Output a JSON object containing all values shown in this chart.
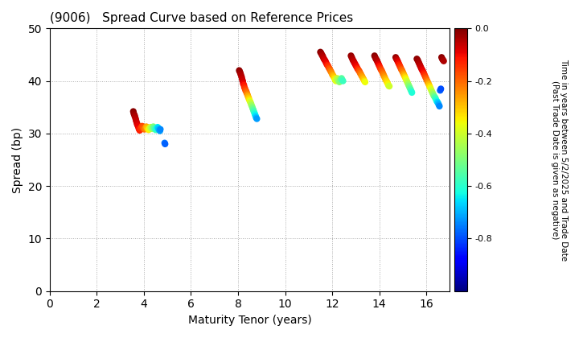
{
  "title": "(9006)   Spread Curve based on Reference Prices",
  "xlabel": "Maturity Tenor (years)",
  "ylabel": "Spread (bp)",
  "colorbar_label_line1": "Time in years between 5/2/2025 and Trade Date",
  "colorbar_label_line2": "(Past Trade Date is given as negative)",
  "xlim": [
    0,
    17
  ],
  "ylim": [
    0,
    50
  ],
  "xticks": [
    0,
    2,
    4,
    6,
    8,
    10,
    12,
    14,
    16
  ],
  "yticks": [
    0,
    10,
    20,
    30,
    40,
    50
  ],
  "cmap": "jet",
  "vmin": -1.0,
  "vmax": 0.0,
  "colorbar_ticks": [
    0.0,
    -0.2,
    -0.4,
    -0.6,
    -0.8
  ],
  "background_color": "#ffffff",
  "grid_color": "#aaaaaa",
  "points": [
    [
      3.55,
      34.2,
      -0.01
    ],
    [
      3.57,
      33.8,
      -0.02
    ],
    [
      3.6,
      33.5,
      -0.03
    ],
    [
      3.62,
      33.2,
      -0.04
    ],
    [
      3.65,
      32.8,
      -0.05
    ],
    [
      3.67,
      32.4,
      -0.06
    ],
    [
      3.7,
      32.0,
      -0.07
    ],
    [
      3.72,
      31.7,
      -0.08
    ],
    [
      3.75,
      31.4,
      -0.09
    ],
    [
      3.78,
      31.0,
      -0.1
    ],
    [
      3.8,
      30.8,
      -0.11
    ],
    [
      3.82,
      30.6,
      -0.12
    ],
    [
      3.85,
      30.8,
      -0.13
    ],
    [
      3.87,
      31.0,
      -0.14
    ],
    [
      3.9,
      31.2,
      -0.15
    ],
    [
      3.92,
      31.4,
      -0.16
    ],
    [
      3.95,
      31.3,
      -0.17
    ],
    [
      3.97,
      31.1,
      -0.18
    ],
    [
      4.0,
      31.0,
      -0.19
    ],
    [
      4.02,
      30.8,
      -0.2
    ],
    [
      4.05,
      30.9,
      -0.22
    ],
    [
      4.08,
      31.1,
      -0.24
    ],
    [
      4.1,
      31.3,
      -0.26
    ],
    [
      4.13,
      31.2,
      -0.28
    ],
    [
      4.15,
      31.0,
      -0.3
    ],
    [
      4.18,
      30.8,
      -0.32
    ],
    [
      4.2,
      30.7,
      -0.34
    ],
    [
      4.23,
      30.9,
      -0.36
    ],
    [
      4.25,
      31.0,
      -0.38
    ],
    [
      4.28,
      31.2,
      -0.4
    ],
    [
      4.3,
      31.1,
      -0.42
    ],
    [
      4.33,
      31.0,
      -0.44
    ],
    [
      4.35,
      30.9,
      -0.46
    ],
    [
      4.38,
      31.1,
      -0.48
    ],
    [
      4.4,
      31.3,
      -0.5
    ],
    [
      4.43,
      31.1,
      -0.52
    ],
    [
      4.45,
      31.0,
      -0.54
    ],
    [
      4.48,
      30.9,
      -0.56
    ],
    [
      4.5,
      30.7,
      -0.58
    ],
    [
      4.53,
      30.9,
      -0.6
    ],
    [
      4.55,
      31.0,
      -0.62
    ],
    [
      4.58,
      31.2,
      -0.64
    ],
    [
      4.6,
      31.1,
      -0.66
    ],
    [
      4.62,
      30.9,
      -0.68
    ],
    [
      4.65,
      30.7,
      -0.7
    ],
    [
      4.68,
      30.5,
      -0.72
    ],
    [
      4.7,
      30.8,
      -0.74
    ],
    [
      4.88,
      28.2,
      -0.76
    ],
    [
      4.9,
      28.0,
      -0.78
    ],
    [
      8.05,
      42.0,
      -0.01
    ],
    [
      8.07,
      41.8,
      -0.02
    ],
    [
      8.1,
      41.5,
      -0.03
    ],
    [
      8.12,
      41.2,
      -0.04
    ],
    [
      8.15,
      40.8,
      -0.05
    ],
    [
      8.17,
      40.4,
      -0.06
    ],
    [
      8.2,
      40.0,
      -0.07
    ],
    [
      8.22,
      39.5,
      -0.09
    ],
    [
      8.25,
      39.2,
      -0.11
    ],
    [
      8.27,
      38.8,
      -0.13
    ],
    [
      8.3,
      38.5,
      -0.15
    ],
    [
      8.32,
      38.2,
      -0.17
    ],
    [
      8.35,
      38.0,
      -0.19
    ],
    [
      8.37,
      37.7,
      -0.21
    ],
    [
      8.4,
      37.4,
      -0.24
    ],
    [
      8.42,
      37.1,
      -0.27
    ],
    [
      8.45,
      36.8,
      -0.3
    ],
    [
      8.47,
      36.5,
      -0.33
    ],
    [
      8.5,
      36.2,
      -0.36
    ],
    [
      8.52,
      36.0,
      -0.39
    ],
    [
      8.55,
      35.7,
      -0.42
    ],
    [
      8.57,
      35.4,
      -0.45
    ],
    [
      8.6,
      35.1,
      -0.48
    ],
    [
      8.62,
      34.8,
      -0.51
    ],
    [
      8.65,
      34.5,
      -0.54
    ],
    [
      8.67,
      34.2,
      -0.57
    ],
    [
      8.7,
      33.9,
      -0.6
    ],
    [
      8.72,
      33.6,
      -0.63
    ],
    [
      8.75,
      33.3,
      -0.66
    ],
    [
      8.77,
      33.0,
      -0.69
    ],
    [
      8.8,
      32.8,
      -0.72
    ],
    [
      11.5,
      45.5,
      -0.01
    ],
    [
      11.53,
      45.3,
      -0.02
    ],
    [
      11.56,
      45.0,
      -0.03
    ],
    [
      11.59,
      44.8,
      -0.04
    ],
    [
      11.62,
      44.5,
      -0.05
    ],
    [
      11.65,
      44.2,
      -0.06
    ],
    [
      11.68,
      44.0,
      -0.07
    ],
    [
      11.71,
      43.8,
      -0.08
    ],
    [
      11.74,
      43.5,
      -0.09
    ],
    [
      11.77,
      43.2,
      -0.1
    ],
    [
      11.8,
      43.0,
      -0.12
    ],
    [
      11.83,
      42.8,
      -0.14
    ],
    [
      11.86,
      42.5,
      -0.16
    ],
    [
      11.89,
      42.3,
      -0.18
    ],
    [
      11.92,
      42.0,
      -0.2
    ],
    [
      11.95,
      41.8,
      -0.22
    ],
    [
      11.98,
      41.5,
      -0.24
    ],
    [
      12.01,
      41.2,
      -0.26
    ],
    [
      12.04,
      41.0,
      -0.28
    ],
    [
      12.07,
      40.8,
      -0.3
    ],
    [
      12.1,
      40.5,
      -0.33
    ],
    [
      12.13,
      40.2,
      -0.36
    ],
    [
      12.16,
      40.0,
      -0.38
    ],
    [
      12.19,
      40.3,
      -0.4
    ],
    [
      12.22,
      40.5,
      -0.42
    ],
    [
      12.25,
      40.2,
      -0.44
    ],
    [
      12.28,
      40.0,
      -0.46
    ],
    [
      12.31,
      39.8,
      -0.48
    ],
    [
      12.34,
      40.0,
      -0.5
    ],
    [
      12.37,
      40.3,
      -0.52
    ],
    [
      12.4,
      40.5,
      -0.54
    ],
    [
      12.43,
      40.2,
      -0.56
    ],
    [
      12.46,
      40.0,
      -0.58
    ],
    [
      12.8,
      44.8,
      -0.02
    ],
    [
      12.83,
      44.5,
      -0.03
    ],
    [
      12.86,
      44.2,
      -0.04
    ],
    [
      12.89,
      43.9,
      -0.05
    ],
    [
      12.92,
      43.7,
      -0.06
    ],
    [
      12.95,
      43.4,
      -0.07
    ],
    [
      12.98,
      43.2,
      -0.08
    ],
    [
      13.01,
      42.9,
      -0.09
    ],
    [
      13.04,
      42.7,
      -0.1
    ],
    [
      13.07,
      42.4,
      -0.12
    ],
    [
      13.1,
      42.2,
      -0.14
    ],
    [
      13.13,
      42.0,
      -0.16
    ],
    [
      13.16,
      41.8,
      -0.18
    ],
    [
      13.19,
      41.5,
      -0.2
    ],
    [
      13.22,
      41.3,
      -0.22
    ],
    [
      13.25,
      41.0,
      -0.24
    ],
    [
      13.28,
      40.8,
      -0.26
    ],
    [
      13.31,
      40.5,
      -0.28
    ],
    [
      13.34,
      40.3,
      -0.3
    ],
    [
      13.37,
      40.0,
      -0.33
    ],
    [
      13.4,
      39.8,
      -0.36
    ],
    [
      13.8,
      44.8,
      -0.01
    ],
    [
      13.83,
      44.5,
      -0.02
    ],
    [
      13.86,
      44.2,
      -0.03
    ],
    [
      13.89,
      44.0,
      -0.04
    ],
    [
      13.92,
      43.7,
      -0.05
    ],
    [
      13.95,
      43.4,
      -0.07
    ],
    [
      13.98,
      43.1,
      -0.09
    ],
    [
      14.01,
      42.8,
      -0.11
    ],
    [
      14.04,
      42.5,
      -0.13
    ],
    [
      14.07,
      42.2,
      -0.15
    ],
    [
      14.1,
      42.0,
      -0.17
    ],
    [
      14.13,
      41.7,
      -0.19
    ],
    [
      14.16,
      41.4,
      -0.21
    ],
    [
      14.19,
      41.1,
      -0.23
    ],
    [
      14.22,
      40.8,
      -0.25
    ],
    [
      14.25,
      40.5,
      -0.27
    ],
    [
      14.28,
      40.2,
      -0.29
    ],
    [
      14.31,
      40.0,
      -0.31
    ],
    [
      14.34,
      39.7,
      -0.33
    ],
    [
      14.37,
      39.4,
      -0.35
    ],
    [
      14.4,
      39.1,
      -0.37
    ],
    [
      14.43,
      39.0,
      -0.4
    ],
    [
      14.7,
      44.5,
      -0.02
    ],
    [
      14.73,
      44.2,
      -0.04
    ],
    [
      14.76,
      44.0,
      -0.06
    ],
    [
      14.79,
      43.7,
      -0.08
    ],
    [
      14.82,
      43.4,
      -0.1
    ],
    [
      14.85,
      43.1,
      -0.12
    ],
    [
      14.88,
      42.8,
      -0.14
    ],
    [
      14.91,
      42.5,
      -0.16
    ],
    [
      14.94,
      42.2,
      -0.18
    ],
    [
      14.97,
      42.0,
      -0.2
    ],
    [
      15.0,
      41.7,
      -0.22
    ],
    [
      15.03,
      41.4,
      -0.25
    ],
    [
      15.06,
      41.1,
      -0.28
    ],
    [
      15.09,
      40.8,
      -0.31
    ],
    [
      15.12,
      40.5,
      -0.34
    ],
    [
      15.15,
      40.2,
      -0.37
    ],
    [
      15.18,
      39.9,
      -0.4
    ],
    [
      15.21,
      39.6,
      -0.43
    ],
    [
      15.24,
      39.3,
      -0.46
    ],
    [
      15.27,
      39.0,
      -0.49
    ],
    [
      15.3,
      38.7,
      -0.52
    ],
    [
      15.33,
      38.4,
      -0.55
    ],
    [
      15.36,
      38.1,
      -0.58
    ],
    [
      15.39,
      37.8,
      -0.61
    ],
    [
      15.6,
      44.2,
      -0.01
    ],
    [
      15.63,
      44.0,
      -0.02
    ],
    [
      15.66,
      43.7,
      -0.03
    ],
    [
      15.69,
      43.4,
      -0.04
    ],
    [
      15.72,
      43.1,
      -0.05
    ],
    [
      15.75,
      42.8,
      -0.06
    ],
    [
      15.78,
      42.5,
      -0.07
    ],
    [
      15.81,
      42.2,
      -0.08
    ],
    [
      15.84,
      42.0,
      -0.09
    ],
    [
      15.87,
      41.7,
      -0.1
    ],
    [
      15.9,
      41.4,
      -0.12
    ],
    [
      15.93,
      41.1,
      -0.14
    ],
    [
      15.96,
      40.8,
      -0.16
    ],
    [
      15.99,
      40.5,
      -0.18
    ],
    [
      16.02,
      40.2,
      -0.2
    ],
    [
      16.05,
      39.9,
      -0.23
    ],
    [
      16.08,
      39.6,
      -0.26
    ],
    [
      16.11,
      39.3,
      -0.29
    ],
    [
      16.14,
      39.0,
      -0.32
    ],
    [
      16.17,
      38.7,
      -0.35
    ],
    [
      16.2,
      38.4,
      -0.38
    ],
    [
      16.23,
      38.1,
      -0.41
    ],
    [
      16.26,
      37.8,
      -0.44
    ],
    [
      16.29,
      37.5,
      -0.47
    ],
    [
      16.32,
      37.2,
      -0.5
    ],
    [
      16.35,
      37.0,
      -0.53
    ],
    [
      16.38,
      36.8,
      -0.56
    ],
    [
      16.41,
      36.5,
      -0.59
    ],
    [
      16.44,
      36.2,
      -0.62
    ],
    [
      16.47,
      36.0,
      -0.65
    ],
    [
      16.5,
      35.8,
      -0.68
    ],
    [
      16.53,
      35.5,
      -0.71
    ],
    [
      16.56,
      35.2,
      -0.74
    ],
    [
      16.59,
      38.2,
      -0.78
    ],
    [
      16.62,
      38.5,
      -0.8
    ],
    [
      16.65,
      44.5,
      -0.01
    ],
    [
      16.68,
      44.2,
      -0.02
    ],
    [
      16.71,
      44.0,
      -0.03
    ],
    [
      16.74,
      43.8,
      -0.04
    ]
  ]
}
